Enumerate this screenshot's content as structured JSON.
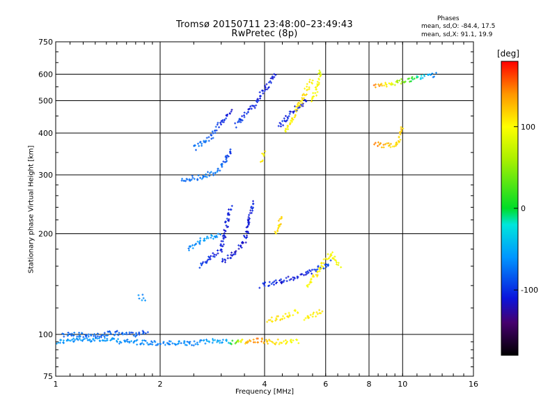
{
  "header": {
    "title_line1": "Tromsø 20150711 23:48:00–23:49:43",
    "title_line2": "RwPretec (8p)",
    "phases_title": "Phases",
    "phases_o": "mean, sd,O: -84.4, 17.5",
    "phases_x": "mean, sd,X:  91.1, 19.9"
  },
  "colors": {
    "frame": "#000000",
    "grid": "#000000",
    "background": "#ffffff"
  },
  "colorbar": {
    "unit": "[deg]",
    "ticks": [
      "100",
      "0",
      "-100"
    ],
    "tick_values": [
      100,
      0,
      -100
    ],
    "range": [
      -180,
      180
    ],
    "palette": "rainbow: black-purple-blue-cyan-green-yellow-orange-red"
  },
  "chart_data": {
    "type": "scatter",
    "title": "Tromsø 20150711 23:48:00–23:49:43",
    "subtitle": "RwPretec (8p)",
    "xlabel": "Frequency [MHz]",
    "ylabel": "Stationary phase Virtual Height [km]",
    "xscale": "log",
    "yscale": "log",
    "xlim": [
      1,
      16
    ],
    "ylim": [
      75,
      750
    ],
    "xticks": [
      1,
      2,
      4,
      6,
      8,
      10,
      16
    ],
    "xtick_labels": [
      "1",
      "2",
      "4",
      "6",
      "8",
      "10",
      "16"
    ],
    "yticks": [
      75,
      100,
      200,
      300,
      400,
      500,
      600,
      750
    ],
    "ytick_labels": [
      "75",
      "100",
      "200",
      "300",
      "400",
      "500",
      "600",
      "750"
    ],
    "grid": true,
    "color_dimension": "phase [deg]",
    "traces": [
      {
        "x": [
          1.0,
          1.3,
          1.6,
          2.0,
          2.5,
          2.9,
          3.2
        ],
        "y": [
          95,
          97,
          95,
          94,
          94,
          96,
          95
        ],
        "phase": [
          -60,
          -60,
          -65,
          -70,
          -65,
          -55,
          -50
        ]
      },
      {
        "x": [
          3.2,
          3.5,
          3.8,
          4.2,
          4.6,
          5.0
        ],
        "y": [
          95,
          95,
          96,
          95,
          95,
          95
        ],
        "phase": [
          0,
          120,
          150,
          110,
          100,
          90
        ]
      },
      {
        "x": [
          1.05,
          1.3,
          1.5,
          1.7,
          1.85
        ],
        "y": [
          100,
          99,
          101,
          100,
          102
        ],
        "phase": [
          -80,
          -75,
          -80,
          -85,
          -85
        ]
      },
      {
        "x": [
          1.75,
          1.8
        ],
        "y": [
          130,
          128
        ],
        "phase": [
          -60,
          -65
        ]
      },
      {
        "x": [
          2.4,
          2.6,
          2.8,
          3.0
        ],
        "y": [
          180,
          190,
          195,
          200
        ],
        "phase": [
          -70,
          -60,
          -55,
          -70
        ]
      },
      {
        "x": [
          2.6,
          2.8,
          3.0,
          3.1,
          3.2
        ],
        "y": [
          160,
          170,
          180,
          210,
          240
        ],
        "phase": [
          -95,
          -100,
          -110,
          -110,
          -105
        ]
      },
      {
        "x": [
          3.0,
          3.3,
          3.5,
          3.6,
          3.7
        ],
        "y": [
          165,
          175,
          190,
          215,
          250
        ],
        "phase": [
          -110,
          -110,
          -112,
          -110,
          -105
        ]
      },
      {
        "x": [
          2.3,
          2.6,
          2.9,
          3.1,
          3.2
        ],
        "y": [
          290,
          295,
          305,
          330,
          360
        ],
        "phase": [
          -80,
          -75,
          -70,
          -90,
          -95
        ]
      },
      {
        "x": [
          2.5,
          2.8,
          3.0,
          3.2
        ],
        "y": [
          360,
          390,
          430,
          470
        ],
        "phase": [
          -75,
          -80,
          -100,
          -110
        ]
      },
      {
        "x": [
          3.3,
          3.5,
          3.7,
          3.9,
          4.1,
          4.3
        ],
        "y": [
          420,
          450,
          480,
          520,
          560,
          600
        ],
        "phase": [
          -95,
          -100,
          -105,
          -110,
          -110,
          -105
        ]
      },
      {
        "x": [
          4.4,
          4.7,
          5.0,
          5.3
        ],
        "y": [
          420,
          450,
          480,
          500
        ],
        "phase": [
          -100,
          -105,
          -110,
          -110
        ]
      },
      {
        "x": [
          4.6,
          4.9,
          5.2,
          5.5
        ],
        "y": [
          400,
          460,
          520,
          580
        ],
        "phase": [
          100,
          110,
          110,
          105
        ]
      },
      {
        "x": [
          5.5,
          5.7,
          5.8
        ],
        "y": [
          500,
          560,
          620
        ],
        "phase": [
          95,
          100,
          85
        ]
      },
      {
        "x": [
          3.9,
          4.0
        ],
        "y": [
          330,
          350
        ],
        "phase": [
          110,
          105
        ]
      },
      {
        "x": [
          3.9,
          4.3,
          4.7,
          5.1,
          5.5,
          5.9,
          6.2
        ],
        "y": [
          140,
          143,
          147,
          150,
          155,
          160,
          165
        ],
        "phase": [
          -105,
          -105,
          -110,
          -110,
          -105,
          -90,
          -85
        ]
      },
      {
        "x": [
          5.3,
          5.6,
          5.9,
          6.2,
          6.6
        ],
        "y": [
          140,
          150,
          165,
          175,
          160
        ],
        "phase": [
          100,
          110,
          105,
          100,
          95
        ]
      },
      {
        "x": [
          4.3,
          4.5
        ],
        "y": [
          200,
          225
        ],
        "phase": [
          110,
          115
        ]
      },
      {
        "x": [
          4.1,
          4.4,
          4.7,
          5.0
        ],
        "y": [
          110,
          112,
          115,
          118
        ],
        "phase": [
          115,
          110,
          110,
          105
        ]
      },
      {
        "x": [
          5.2,
          5.6,
          5.9
        ],
        "y": [
          112,
          115,
          118
        ],
        "phase": [
          100,
          105,
          110
        ]
      },
      {
        "x": [
          8.3,
          9.6,
          10.0
        ],
        "y": [
          370,
          365,
          420
        ],
        "phase": [
          150,
          110,
          120
        ]
      },
      {
        "x": [
          8.3,
          12.5
        ],
        "y": [
          550,
          600
        ],
        "phase": [
          150,
          -80
        ]
      }
    ]
  }
}
